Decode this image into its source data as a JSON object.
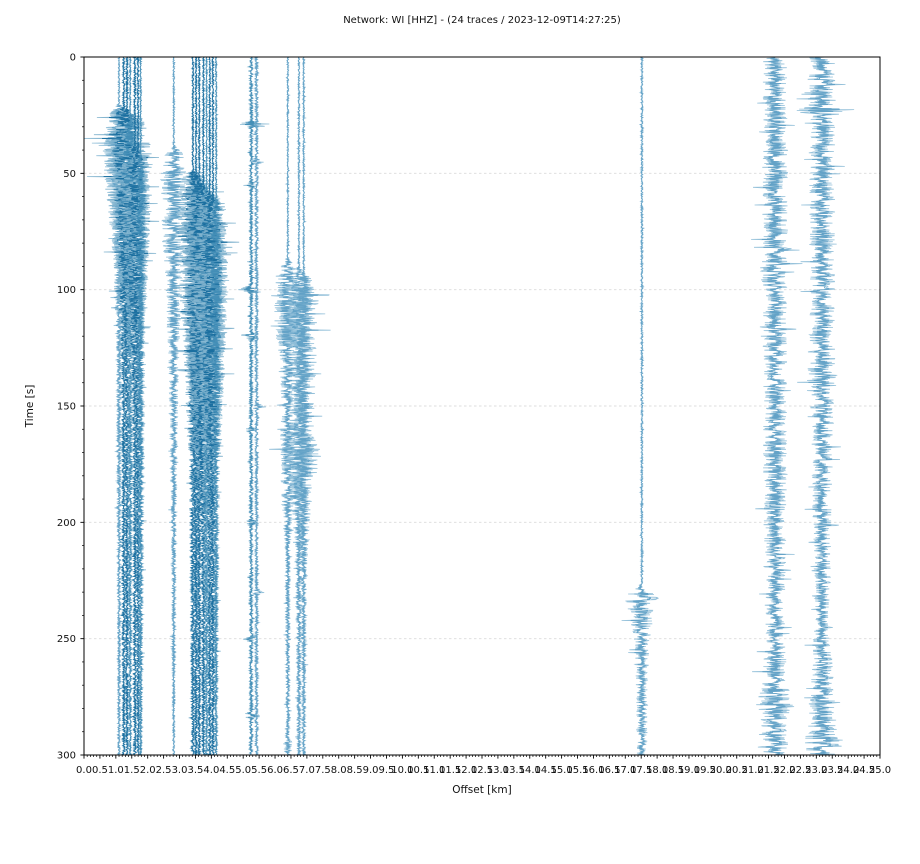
{
  "figure": {
    "title": "Network: WI [HHZ] - (24 traces / 2023-12-09T14:27:25)",
    "xlabel": "Offset [km]",
    "ylabel": "Time [s]"
  },
  "chart_data": {
    "type": "seismic-record-section",
    "title": "Network: WI [HHZ] - (24 traces / 2023-12-09T14:27:25)",
    "xlabel": "Offset [km]",
    "ylabel": "Time [s]",
    "xlim": [
      0.0,
      25.0
    ],
    "ylim": [
      0,
      300
    ],
    "y_inverted": true,
    "x_major_step": 0.5,
    "x_minor_step": 0.1,
    "y_major_step": 50,
    "y_minor_step": 10,
    "grid": {
      "horizontal": true,
      "vertical": false,
      "style": "dashed",
      "color": "#dcdcdc"
    },
    "x_tick_labels": [
      "0.0",
      "0.5",
      "1.0",
      "1.5",
      "2.0",
      "2.5",
      "3.0",
      "3.5",
      "4.0",
      "4.5",
      "5.0",
      "5.5",
      "6.0",
      "6.5",
      "7.0",
      "7.5",
      "8.0",
      "8.5",
      "9.0",
      "9.5",
      "10.0",
      "10.5",
      "11.0",
      "11.5",
      "12.0",
      "12.5",
      "13.0",
      "13.5",
      "14.0",
      "14.5",
      "15.0",
      "15.5",
      "16.0",
      "16.5",
      "17.0",
      "17.5",
      "18.0",
      "18.5",
      "19.0",
      "19.5",
      "20.0",
      "20.5",
      "21.0",
      "21.5",
      "22.0",
      "22.5",
      "23.0",
      "23.5",
      "24.0",
      "24.5",
      "25.0"
    ],
    "y_tick_labels": [
      "0",
      "50",
      "100",
      "150",
      "200",
      "250",
      "300"
    ],
    "trace_count": 24,
    "shades": {
      "dark": {
        "outer": "#7fb2ce",
        "core": "#11689b"
      },
      "med": {
        "outer": "#8abbd4",
        "core": "#3c89b4"
      },
      "light": {
        "outer": "#8fbed8",
        "core": "#5d9fc4"
      }
    },
    "traces": [
      {
        "offset_km": 1.1,
        "shade": "light",
        "seed": 11,
        "envelope": [
          [
            0,
            1
          ],
          [
            20,
            1
          ],
          [
            24,
            10
          ],
          [
            35,
            16
          ],
          [
            60,
            12
          ],
          [
            90,
            6
          ],
          [
            120,
            3
          ],
          [
            300,
            1.5
          ]
        ],
        "spikes": []
      },
      {
        "offset_km": 1.25,
        "shade": "dark",
        "seed": 22,
        "envelope": [
          [
            0,
            1.5
          ],
          [
            21,
            1.5
          ],
          [
            24,
            14
          ],
          [
            30,
            22
          ],
          [
            55,
            20
          ],
          [
            80,
            12
          ],
          [
            110,
            6
          ],
          [
            140,
            3
          ],
          [
            300,
            2
          ]
        ],
        "spikes": []
      },
      {
        "offset_km": 1.35,
        "shade": "dark",
        "seed": 33,
        "envelope": [
          [
            0,
            1.5
          ],
          [
            22,
            1.5
          ],
          [
            26,
            18
          ],
          [
            40,
            24
          ],
          [
            65,
            18
          ],
          [
            95,
            9
          ],
          [
            130,
            4
          ],
          [
            300,
            2
          ]
        ],
        "spikes": []
      },
      {
        "offset_km": 1.45,
        "shade": "med",
        "seed": 44,
        "envelope": [
          [
            0,
            1
          ],
          [
            25,
            1
          ],
          [
            30,
            10
          ],
          [
            50,
            14
          ],
          [
            80,
            8
          ],
          [
            120,
            4
          ],
          [
            300,
            1.5
          ]
        ],
        "spikes": []
      },
      {
        "offset_km": 1.6,
        "shade": "dark",
        "seed": 55,
        "envelope": [
          [
            0,
            1.5
          ],
          [
            38,
            1.5
          ],
          [
            41,
            12
          ],
          [
            48,
            16
          ],
          [
            70,
            12
          ],
          [
            100,
            12
          ],
          [
            130,
            6
          ],
          [
            170,
            3
          ],
          [
            300,
            2
          ]
        ],
        "spikes": []
      },
      {
        "offset_km": 1.7,
        "shade": "dark",
        "seed": 66,
        "envelope": [
          [
            0,
            1.2
          ],
          [
            40,
            1.2
          ],
          [
            44,
            10
          ],
          [
            60,
            14
          ],
          [
            90,
            10
          ],
          [
            130,
            5
          ],
          [
            300,
            1.5
          ]
        ],
        "spikes": []
      },
      {
        "offset_km": 1.78,
        "shade": "med",
        "seed": 77,
        "envelope": [
          [
            0,
            1
          ],
          [
            42,
            1
          ],
          [
            46,
            8
          ],
          [
            70,
            10
          ],
          [
            110,
            5
          ],
          [
            300,
            1.5
          ]
        ],
        "spikes": []
      },
      {
        "offset_km": 2.82,
        "shade": "light",
        "seed": 88,
        "envelope": [
          [
            0,
            1
          ],
          [
            38,
            1
          ],
          [
            41,
            9
          ],
          [
            50,
            13
          ],
          [
            75,
            12
          ],
          [
            100,
            8
          ],
          [
            140,
            5
          ],
          [
            190,
            3
          ],
          [
            300,
            1.2
          ]
        ],
        "spikes": []
      },
      {
        "offset_km": 3.42,
        "shade": "dark",
        "seed": 99,
        "envelope": [
          [
            0,
            1.2
          ],
          [
            48,
            1.2
          ],
          [
            52,
            12
          ],
          [
            65,
            16
          ],
          [
            100,
            14
          ],
          [
            140,
            8
          ],
          [
            180,
            4
          ],
          [
            300,
            2
          ]
        ],
        "spikes": []
      },
      {
        "offset_km": 3.52,
        "shade": "dark",
        "seed": 110,
        "envelope": [
          [
            0,
            1.2
          ],
          [
            50,
            1.2
          ],
          [
            55,
            15
          ],
          [
            75,
            18
          ],
          [
            110,
            16
          ],
          [
            150,
            9
          ],
          [
            190,
            4
          ],
          [
            300,
            2
          ]
        ],
        "spikes": []
      },
      {
        "offset_km": 3.62,
        "shade": "dark",
        "seed": 121,
        "envelope": [
          [
            0,
            1.2
          ],
          [
            52,
            1.2
          ],
          [
            57,
            14
          ],
          [
            80,
            18
          ],
          [
            120,
            14
          ],
          [
            160,
            8
          ],
          [
            200,
            3
          ],
          [
            300,
            2
          ]
        ],
        "spikes": []
      },
      {
        "offset_km": 3.75,
        "shade": "dark",
        "seed": 132,
        "envelope": [
          [
            0,
            1.2
          ],
          [
            55,
            1.2
          ],
          [
            60,
            16
          ],
          [
            85,
            20
          ],
          [
            125,
            16
          ],
          [
            165,
            9
          ],
          [
            205,
            4
          ],
          [
            300,
            2
          ]
        ],
        "spikes": []
      },
      {
        "offset_km": 3.85,
        "shade": "med",
        "seed": 143,
        "envelope": [
          [
            0,
            1
          ],
          [
            56,
            1
          ],
          [
            62,
            10
          ],
          [
            90,
            14
          ],
          [
            130,
            10
          ],
          [
            170,
            5
          ],
          [
            300,
            1.5
          ]
        ],
        "spikes": []
      },
      {
        "offset_km": 3.95,
        "shade": "dark",
        "seed": 154,
        "envelope": [
          [
            0,
            1.2
          ],
          [
            58,
            1.2
          ],
          [
            62,
            14
          ],
          [
            90,
            18
          ],
          [
            130,
            14
          ],
          [
            170,
            7
          ],
          [
            210,
            3
          ],
          [
            300,
            2
          ]
        ],
        "spikes": []
      },
      {
        "offset_km": 4.05,
        "shade": "dark",
        "seed": 165,
        "envelope": [
          [
            0,
            1.2
          ],
          [
            60,
            1.2
          ],
          [
            64,
            12
          ],
          [
            95,
            16
          ],
          [
            135,
            12
          ],
          [
            175,
            6
          ],
          [
            300,
            2
          ]
        ],
        "spikes": []
      },
      {
        "offset_km": 4.15,
        "shade": "med",
        "seed": 176,
        "envelope": [
          [
            0,
            1
          ],
          [
            60,
            1
          ],
          [
            66,
            8
          ],
          [
            100,
            12
          ],
          [
            140,
            8
          ],
          [
            180,
            4
          ],
          [
            300,
            1.5
          ]
        ],
        "spikes": []
      },
      {
        "offset_km": 5.25,
        "shade": "med",
        "seed": 187,
        "envelope": [
          [
            0,
            2.2
          ],
          [
            300,
            2.2
          ]
        ],
        "spikes": [
          [
            29,
            20
          ],
          [
            55,
            7
          ],
          [
            100,
            16
          ],
          [
            120,
            12
          ],
          [
            160,
            5
          ],
          [
            200,
            9
          ],
          [
            250,
            7
          ],
          [
            283,
            10
          ]
        ]
      },
      {
        "offset_km": 5.42,
        "shade": "light",
        "seed": 198,
        "envelope": [
          [
            0,
            2.0
          ],
          [
            300,
            2.0
          ]
        ],
        "spikes": [
          [
            45,
            6
          ],
          [
            150,
            5
          ],
          [
            230,
            4
          ]
        ]
      },
      {
        "offset_km": 6.4,
        "shade": "light",
        "seed": 209,
        "envelope": [
          [
            0,
            1
          ],
          [
            86,
            1
          ],
          [
            88,
            4
          ],
          [
            95,
            13
          ],
          [
            110,
            14
          ],
          [
            130,
            10
          ],
          [
            150,
            6
          ],
          [
            165,
            8
          ],
          [
            185,
            7
          ],
          [
            210,
            3
          ],
          [
            290,
            2
          ],
          [
            295,
            5
          ],
          [
            300,
            3
          ]
        ],
        "spikes": []
      },
      {
        "offset_km": 6.75,
        "shade": "light",
        "seed": 220,
        "envelope": [
          [
            0,
            1
          ],
          [
            90,
            1
          ],
          [
            93,
            6
          ],
          [
            100,
            15
          ],
          [
            125,
            12
          ],
          [
            150,
            8
          ],
          [
            168,
            16
          ],
          [
            178,
            17
          ],
          [
            190,
            9
          ],
          [
            210,
            4
          ],
          [
            300,
            2
          ]
        ],
        "spikes": []
      },
      {
        "offset_km": 6.9,
        "shade": "light",
        "seed": 231,
        "envelope": [
          [
            0,
            1
          ],
          [
            92,
            1
          ],
          [
            95,
            8
          ],
          [
            105,
            16
          ],
          [
            130,
            13
          ],
          [
            160,
            10
          ],
          [
            172,
            19
          ],
          [
            182,
            12
          ],
          [
            200,
            6
          ],
          [
            230,
            3
          ],
          [
            300,
            2
          ]
        ],
        "spikes": []
      },
      {
        "offset_km": 17.52,
        "shade": "light",
        "seed": 242,
        "envelope": [
          [
            0,
            1.2
          ],
          [
            226,
            1.2
          ],
          [
            228,
            5
          ],
          [
            232,
            18
          ],
          [
            238,
            14
          ],
          [
            250,
            8
          ],
          [
            270,
            6
          ],
          [
            300,
            5
          ]
        ],
        "spikes": []
      },
      {
        "offset_km": 21.7,
        "shade": "light",
        "seed": 253,
        "envelope": [
          [
            0,
            12
          ],
          [
            60,
            13
          ],
          [
            85,
            13
          ],
          [
            92,
            16
          ],
          [
            100,
            12
          ],
          [
            180,
            12
          ],
          [
            250,
            10
          ],
          [
            270,
            13
          ],
          [
            278,
            19
          ],
          [
            285,
            14
          ],
          [
            300,
            13
          ]
        ],
        "spikes": []
      },
      {
        "offset_km": 23.18,
        "shade": "light",
        "seed": 264,
        "envelope": [
          [
            0,
            13
          ],
          [
            20,
            14
          ],
          [
            23,
            26
          ],
          [
            26,
            13
          ],
          [
            130,
            13
          ],
          [
            138,
            17
          ],
          [
            145,
            12
          ],
          [
            235,
            8
          ],
          [
            240,
            6
          ],
          [
            250,
            9
          ],
          [
            290,
            15
          ],
          [
            295,
            20
          ],
          [
            300,
            16
          ]
        ],
        "spikes": []
      }
    ]
  }
}
